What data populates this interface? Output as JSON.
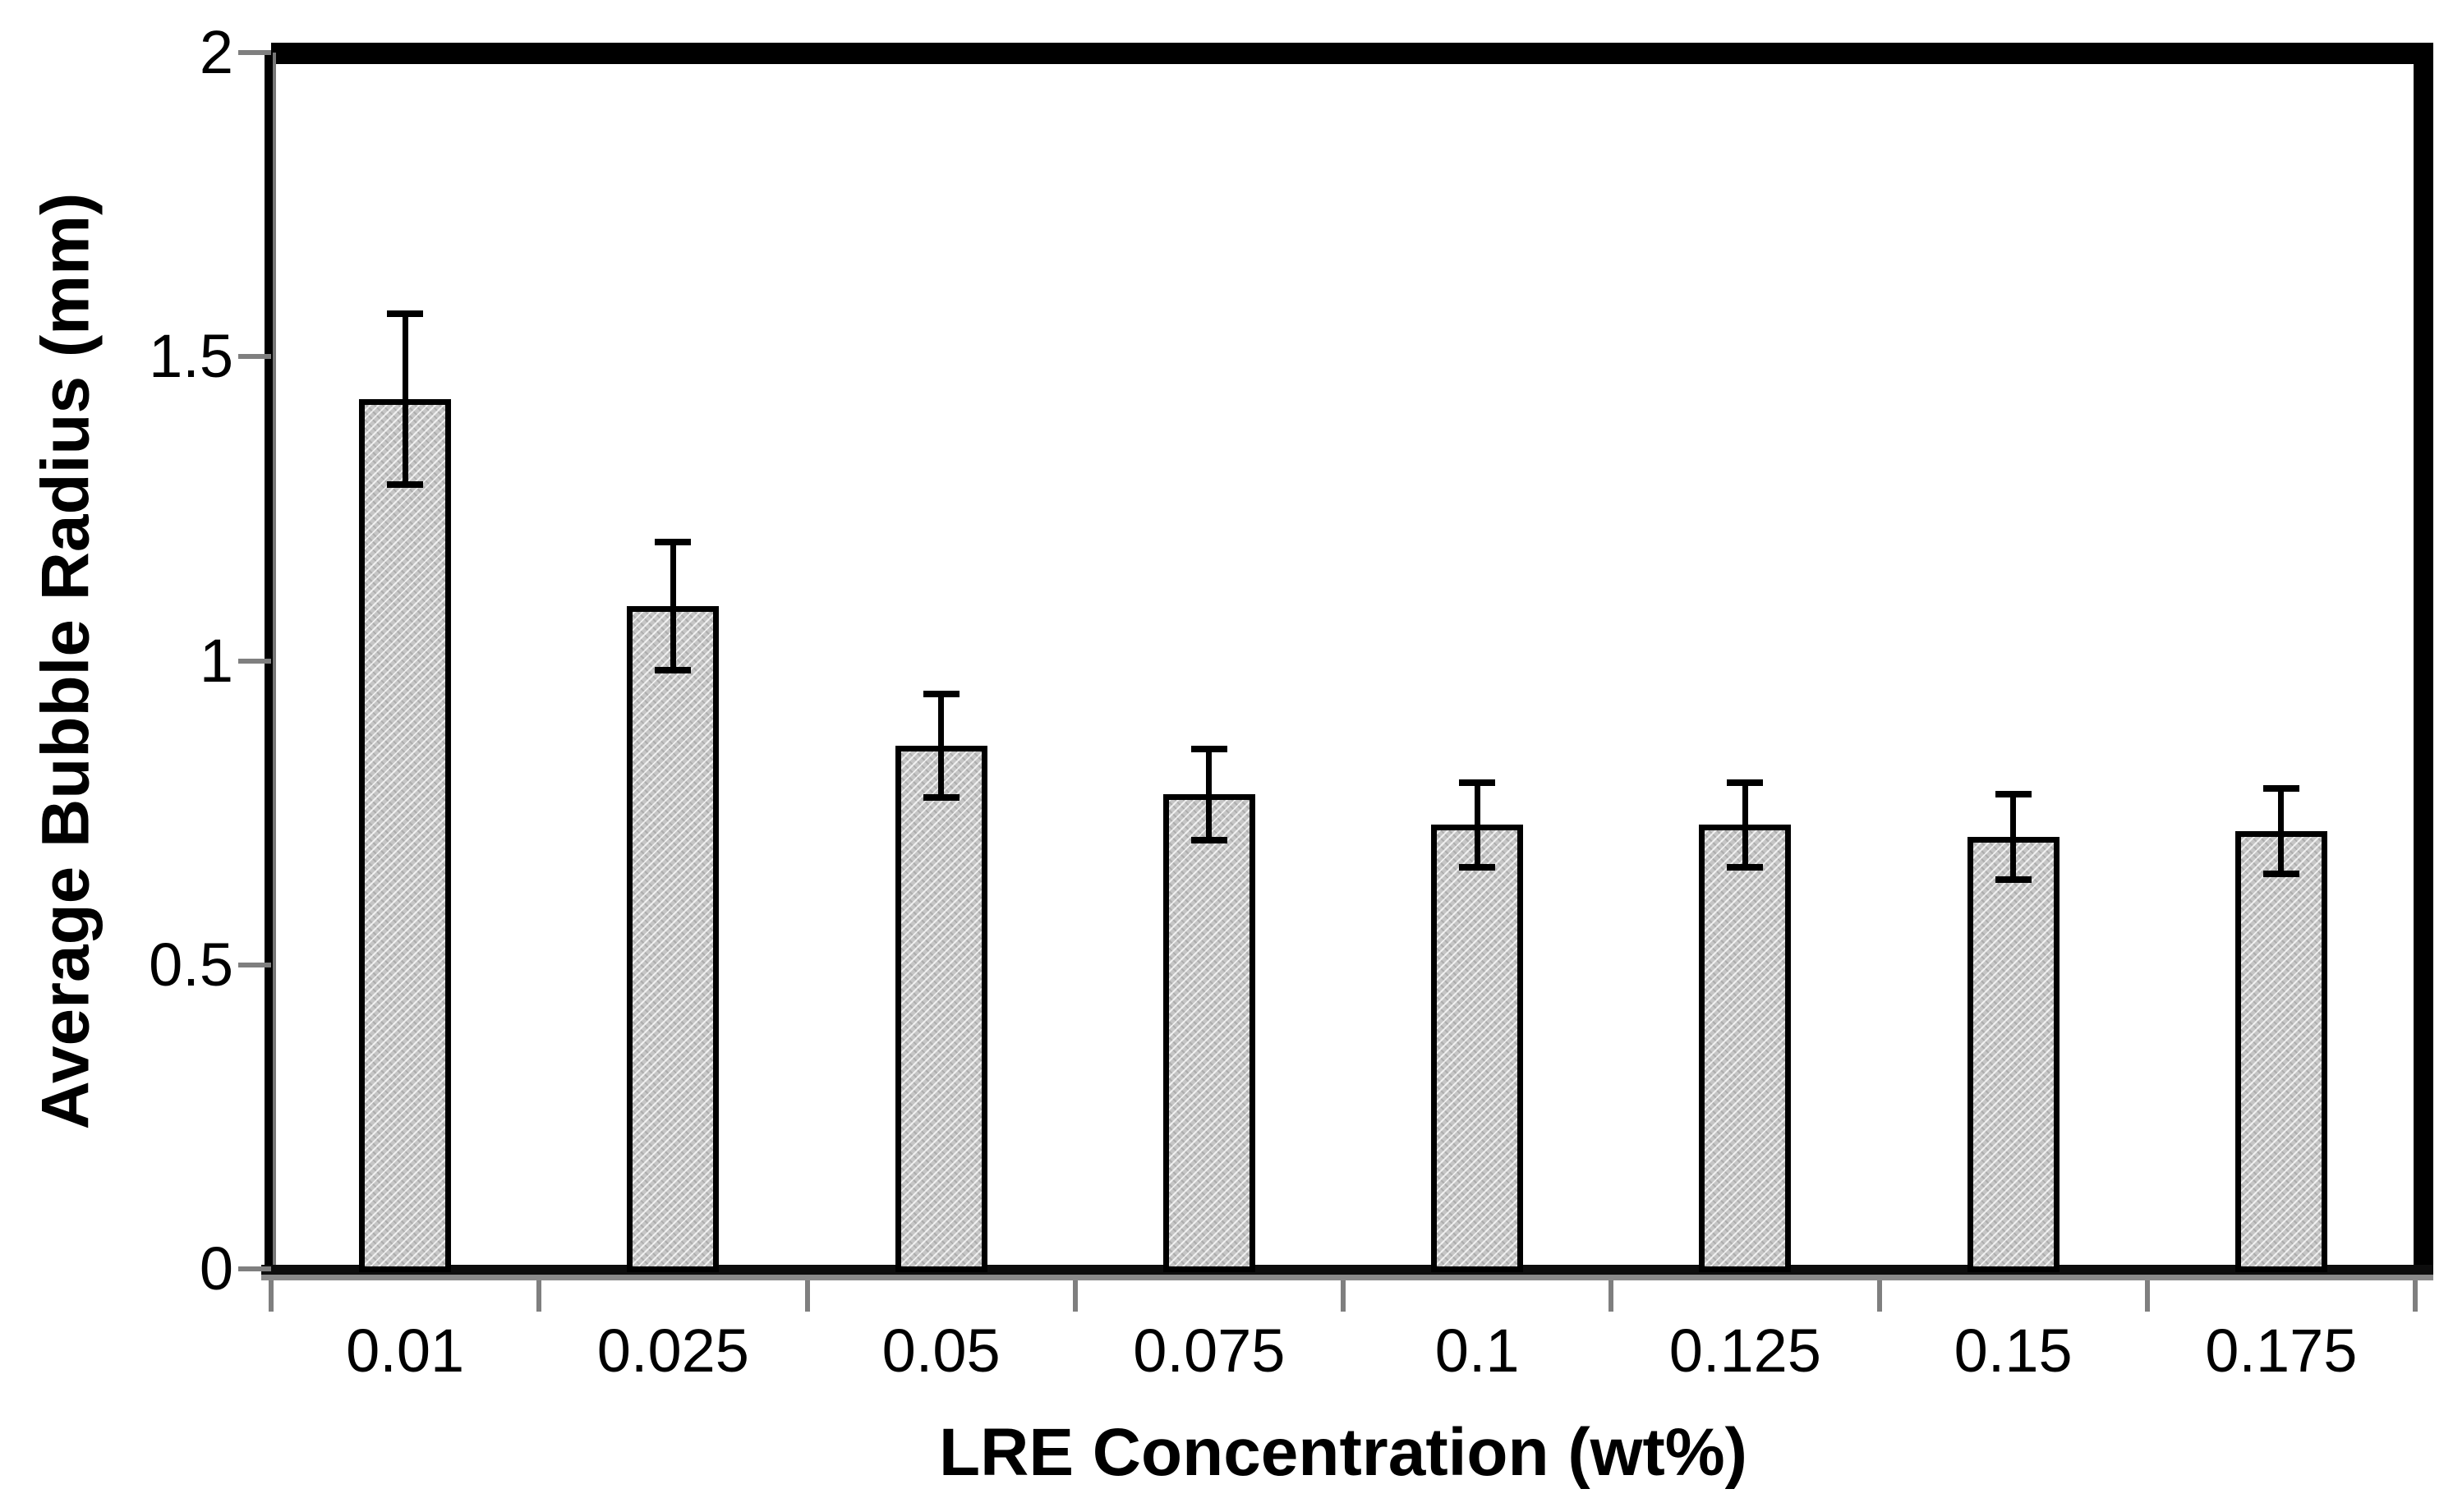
{
  "chart_data": {
    "type": "bar",
    "title": "",
    "xlabel": "LRE Concentration (wt%)",
    "ylabel": "Average Bubble Radius (mm)",
    "categories": [
      "0.01",
      "0.025",
      "0.05",
      "0.075",
      "0.1",
      "0.125",
      "0.15",
      "0.175"
    ],
    "values": [
      1.43,
      1.09,
      0.86,
      0.78,
      0.73,
      0.73,
      0.71,
      0.72
    ],
    "error_bars": [
      0.14,
      0.105,
      0.085,
      0.075,
      0.07,
      0.07,
      0.07,
      0.07
    ],
    "ylim": [
      0,
      2
    ],
    "yticks": [
      0,
      0.5,
      1,
      1.5,
      2
    ],
    "ytick_labels": [
      "0",
      "0.5",
      "1",
      "1.5",
      "2"
    ],
    "grid": false,
    "legend": false,
    "layout": "single vertical bar series with symmetric error bars, ticks outside axes",
    "colors": {
      "background": "#ffffff",
      "bar_fill": "#c6c6c6",
      "bar_hatch": "diagonal-dotted-white",
      "bar_border": "#000000",
      "error_bar": "#000000",
      "axis_frame": "#000000",
      "tick_marks": "#7f7f7f",
      "text": "#000000"
    }
  }
}
